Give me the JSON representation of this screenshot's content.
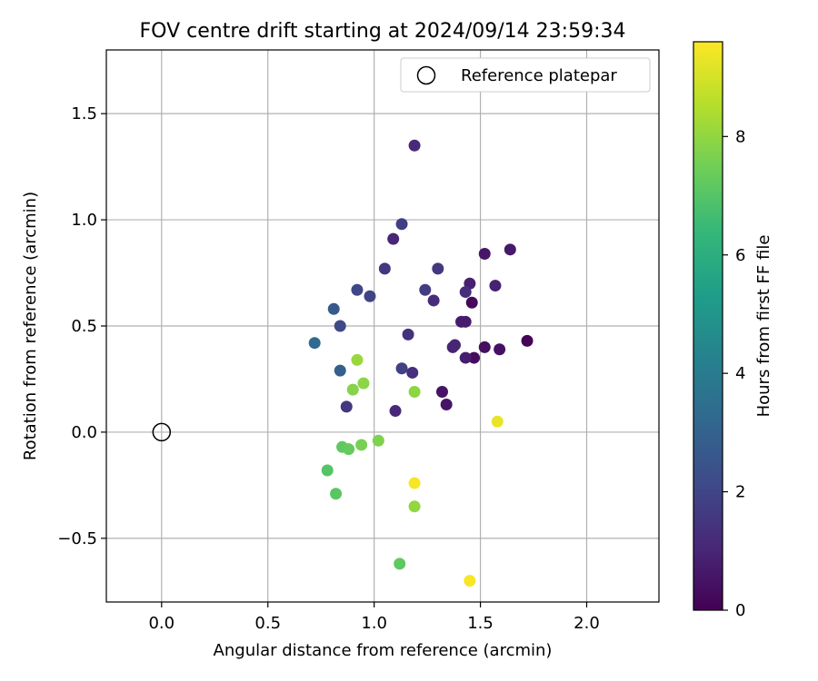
{
  "chart_data": {
    "type": "scatter",
    "title": "FOV centre drift starting at 2024/09/14 23:59:34",
    "xlabel": "Angular distance from reference (arcmin)",
    "ylabel": "Rotation from reference (arcmin)",
    "xlim": [
      -0.26,
      2.34
    ],
    "ylim": [
      -0.8,
      1.8
    ],
    "xticks": [
      0.0,
      0.5,
      1.0,
      1.5,
      2.0
    ],
    "xtick_labels": [
      "0.0",
      "0.5",
      "1.0",
      "1.5",
      "2.0"
    ],
    "yticks": [
      -0.5,
      0.0,
      0.5,
      1.0,
      1.5
    ],
    "ytick_labels": [
      "−0.5",
      "0.0",
      "0.5",
      "1.0",
      "1.5"
    ],
    "grid": true,
    "legend": {
      "position": "top-right",
      "entries": [
        {
          "label": "Reference platepar",
          "marker": "open-circle"
        }
      ]
    },
    "reference_point": {
      "x": 0.0,
      "y": 0.0
    },
    "colorbar": {
      "label": "Hours from first FF file",
      "colormap": "viridis",
      "range": [
        0,
        9.6
      ],
      "ticks": [
        0,
        2,
        4,
        6,
        8
      ],
      "tick_labels": [
        "0",
        "2",
        "4",
        "6",
        "8"
      ],
      "colors": [
        "#440154",
        "#482878",
        "#3e4a89",
        "#31688e",
        "#26828e",
        "#1f9e89",
        "#35b779",
        "#6ece58",
        "#b5de2b",
        "#fde725"
      ]
    },
    "points": [
      {
        "x": 1.72,
        "y": 0.43,
        "c": 0.1
      },
      {
        "x": 1.46,
        "y": 0.61,
        "c": 0.2
      },
      {
        "x": 1.47,
        "y": 0.35,
        "c": 0.3
      },
      {
        "x": 1.52,
        "y": 0.4,
        "c": 0.35
      },
      {
        "x": 1.59,
        "y": 0.39,
        "c": 0.4
      },
      {
        "x": 1.32,
        "y": 0.19,
        "c": 0.5
      },
      {
        "x": 1.34,
        "y": 0.13,
        "c": 0.55
      },
      {
        "x": 1.52,
        "y": 0.84,
        "c": 0.6
      },
      {
        "x": 1.64,
        "y": 0.86,
        "c": 0.65
      },
      {
        "x": 1.41,
        "y": 0.52,
        "c": 0.7
      },
      {
        "x": 1.43,
        "y": 0.52,
        "c": 0.75
      },
      {
        "x": 1.43,
        "y": 0.35,
        "c": 0.8
      },
      {
        "x": 1.45,
        "y": 0.7,
        "c": 0.85
      },
      {
        "x": 1.57,
        "y": 0.69,
        "c": 0.9
      },
      {
        "x": 1.37,
        "y": 0.4,
        "c": 0.95
      },
      {
        "x": 1.38,
        "y": 0.41,
        "c": 1.0
      },
      {
        "x": 1.09,
        "y": 0.91,
        "c": 1.05
      },
      {
        "x": 1.1,
        "y": 0.1,
        "c": 1.1
      },
      {
        "x": 1.19,
        "y": 1.35,
        "c": 1.15
      },
      {
        "x": 1.28,
        "y": 0.62,
        "c": 1.2
      },
      {
        "x": 1.43,
        "y": 0.66,
        "c": 1.25
      },
      {
        "x": 1.18,
        "y": 0.28,
        "c": 1.3
      },
      {
        "x": 1.16,
        "y": 0.46,
        "c": 1.35
      },
      {
        "x": 1.05,
        "y": 0.77,
        "c": 1.5
      },
      {
        "x": 0.87,
        "y": 0.12,
        "c": 1.55
      },
      {
        "x": 1.3,
        "y": 0.77,
        "c": 1.6
      },
      {
        "x": 1.24,
        "y": 0.67,
        "c": 1.7
      },
      {
        "x": 1.13,
        "y": 0.98,
        "c": 1.8
      },
      {
        "x": 1.13,
        "y": 0.3,
        "c": 1.85
      },
      {
        "x": 0.98,
        "y": 0.64,
        "c": 1.95
      },
      {
        "x": 0.92,
        "y": 0.67,
        "c": 2.05
      },
      {
        "x": 0.84,
        "y": 0.5,
        "c": 2.1
      },
      {
        "x": 0.81,
        "y": 0.58,
        "c": 2.7
      },
      {
        "x": 0.84,
        "y": 0.29,
        "c": 2.9
      },
      {
        "x": 0.72,
        "y": 0.42,
        "c": 3.3
      },
      {
        "x": 0.78,
        "y": -0.18,
        "c": 7.0
      },
      {
        "x": 0.82,
        "y": -0.29,
        "c": 7.1
      },
      {
        "x": 0.85,
        "y": -0.07,
        "c": 7.2
      },
      {
        "x": 0.88,
        "y": -0.08,
        "c": 7.3
      },
      {
        "x": 1.12,
        "y": -0.62,
        "c": 7.2
      },
      {
        "x": 0.94,
        "y": -0.06,
        "c": 7.6
      },
      {
        "x": 1.02,
        "y": -0.04,
        "c": 7.7
      },
      {
        "x": 0.9,
        "y": 0.2,
        "c": 7.8
      },
      {
        "x": 0.95,
        "y": 0.23,
        "c": 7.9
      },
      {
        "x": 1.19,
        "y": 0.19,
        "c": 7.95
      },
      {
        "x": 1.19,
        "y": -0.35,
        "c": 8.0
      },
      {
        "x": 0.92,
        "y": 0.34,
        "c": 8.1
      },
      {
        "x": 1.19,
        "y": -0.24,
        "c": 9.5
      },
      {
        "x": 1.45,
        "y": -0.7,
        "c": 9.5
      },
      {
        "x": 1.58,
        "y": 0.05,
        "c": 9.3
      }
    ]
  }
}
